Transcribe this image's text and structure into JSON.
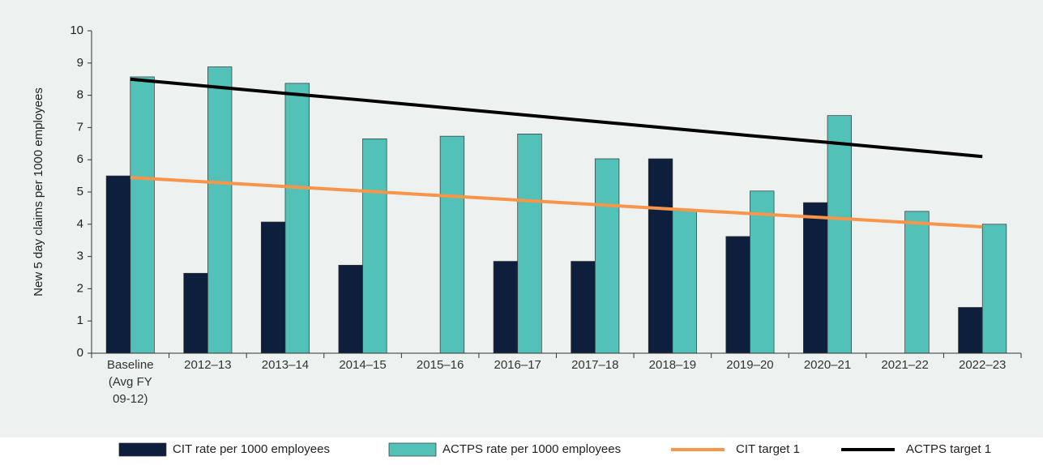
{
  "chart_data": {
    "type": "bar",
    "y_axis_label": "New 5 day claims per 1000 employees",
    "categories": [
      "Baseline (Avg FY 09-12)",
      "2012–13",
      "2013–14",
      "2014–15",
      "2015–16",
      "2016–17",
      "2017–18",
      "2018–19",
      "2019–20",
      "2020–21",
      "2021–22",
      "2022–23"
    ],
    "series": [
      {
        "name": "CIT rate per 1000 employees",
        "type": "bar",
        "color": "#0d1f3c",
        "values": [
          5.5,
          2.48,
          4.07,
          2.73,
          null,
          2.85,
          2.85,
          6.03,
          3.62,
          4.67,
          null,
          1.42
        ]
      },
      {
        "name": "ACTPS rate per 1000 employees",
        "type": "bar",
        "color": "#52c1b8",
        "values": [
          8.57,
          8.88,
          8.37,
          6.65,
          6.73,
          6.8,
          6.03,
          4.45,
          5.03,
          7.37,
          4.4,
          4.0
        ]
      },
      {
        "name": "CIT target 1",
        "type": "line",
        "color": "#f7954a",
        "values": [
          5.45,
          5.31,
          5.17,
          5.03,
          4.89,
          4.75,
          4.61,
          4.47,
          4.33,
          4.2,
          4.06,
          3.92
        ]
      },
      {
        "name": "ACTPS target 1",
        "type": "line",
        "color": "#000000",
        "values": [
          8.5,
          8.28,
          8.06,
          7.85,
          7.63,
          7.41,
          7.19,
          6.97,
          6.75,
          6.54,
          6.32,
          6.1
        ]
      }
    ],
    "ylim": [
      0,
      10
    ],
    "yticks": [
      0,
      1,
      2,
      3,
      4,
      5,
      6,
      7,
      8,
      9,
      10
    ],
    "grid": false,
    "legend": "bottom"
  }
}
